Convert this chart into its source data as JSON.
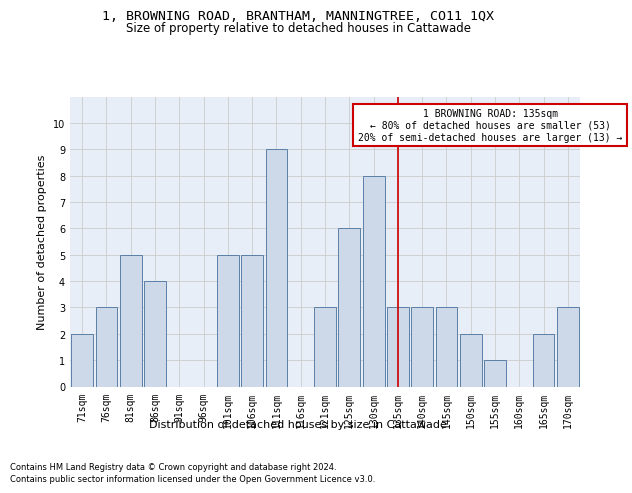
{
  "title": "1, BROWNING ROAD, BRANTHAM, MANNINGTREE, CO11 1QX",
  "subtitle": "Size of property relative to detached houses in Cattawade",
  "xlabel": "Distribution of detached houses by size in Cattawade",
  "ylabel": "Number of detached properties",
  "categories": [
    "71sqm",
    "76sqm",
    "81sqm",
    "86sqm",
    "91sqm",
    "96sqm",
    "101sqm",
    "106sqm",
    "111sqm",
    "116sqm",
    "121sqm",
    "125sqm",
    "130sqm",
    "135sqm",
    "140sqm",
    "145sqm",
    "150sqm",
    "155sqm",
    "160sqm",
    "165sqm",
    "170sqm"
  ],
  "values": [
    2,
    3,
    5,
    4,
    0,
    0,
    5,
    5,
    9,
    0,
    3,
    6,
    8,
    3,
    3,
    3,
    2,
    1,
    0,
    2,
    3
  ],
  "bar_color": "#cdd8e8",
  "bar_edge_color": "#5b7fa6",
  "reference_line_x": 13,
  "reference_line_color": "#cc0000",
  "annotation_text": "1 BROWNING ROAD: 135sqm\n← 80% of detached houses are smaller (53)\n20% of semi-detached houses are larger (13) →",
  "annotation_box_color": "#cc0000",
  "ylim": [
    0,
    11
  ],
  "yticks": [
    0,
    1,
    2,
    3,
    4,
    5,
    6,
    7,
    8,
    9,
    10
  ],
  "grid_color": "#cccccc",
  "background_color": "#e8eef7",
  "footer_line1": "Contains HM Land Registry data © Crown copyright and database right 2024.",
  "footer_line2": "Contains public sector information licensed under the Open Government Licence v3.0.",
  "title_fontsize": 9.5,
  "subtitle_fontsize": 8.5,
  "axis_label_fontsize": 8,
  "tick_fontsize": 7,
  "footer_fontsize": 6,
  "annotation_fontsize": 7
}
